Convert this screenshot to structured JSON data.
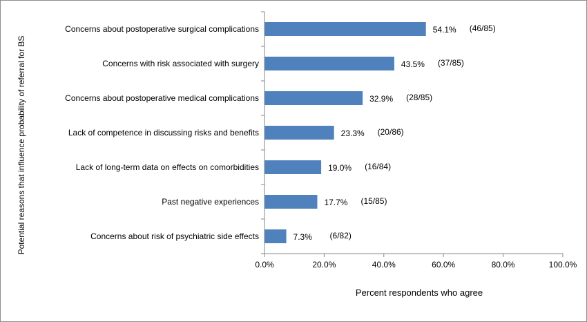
{
  "chart_data": {
    "type": "bar",
    "orientation": "horizontal",
    "title": "",
    "xlabel": "Percent respondents who agree",
    "ylabel": "Potential reasons that influence probability of referral for BS",
    "xlim": [
      0,
      100
    ],
    "x_ticks": [
      "0.0%",
      "20.0%",
      "40.0%",
      "60.0%",
      "80.0%",
      "100.0%"
    ],
    "grid": false,
    "legend": "none",
    "bar_color": "#4f81bd",
    "categories": [
      "Concerns about postoperative surgical complications",
      "Concerns with risk associated with surgery",
      "Concerns about postoperative medical complications",
      "Lack of competence in discussing risks and benefits",
      "Lack of long-term data on effects on comorbidities",
      "Past negative experiences",
      "Concerns about risk of psychiatric side effects"
    ],
    "values": [
      54.1,
      43.5,
      32.9,
      23.3,
      19.0,
      17.7,
      7.3
    ],
    "value_labels": [
      "54.1%",
      "43.5%",
      "32.9%",
      "23.3%",
      "19.0%",
      "17.7%",
      "7.3%"
    ],
    "count_labels": [
      "(46/85)",
      "(37/85)",
      "(28/85)",
      "(20/86)",
      "(16/84)",
      "(15/85)",
      "(6/82)"
    ]
  }
}
